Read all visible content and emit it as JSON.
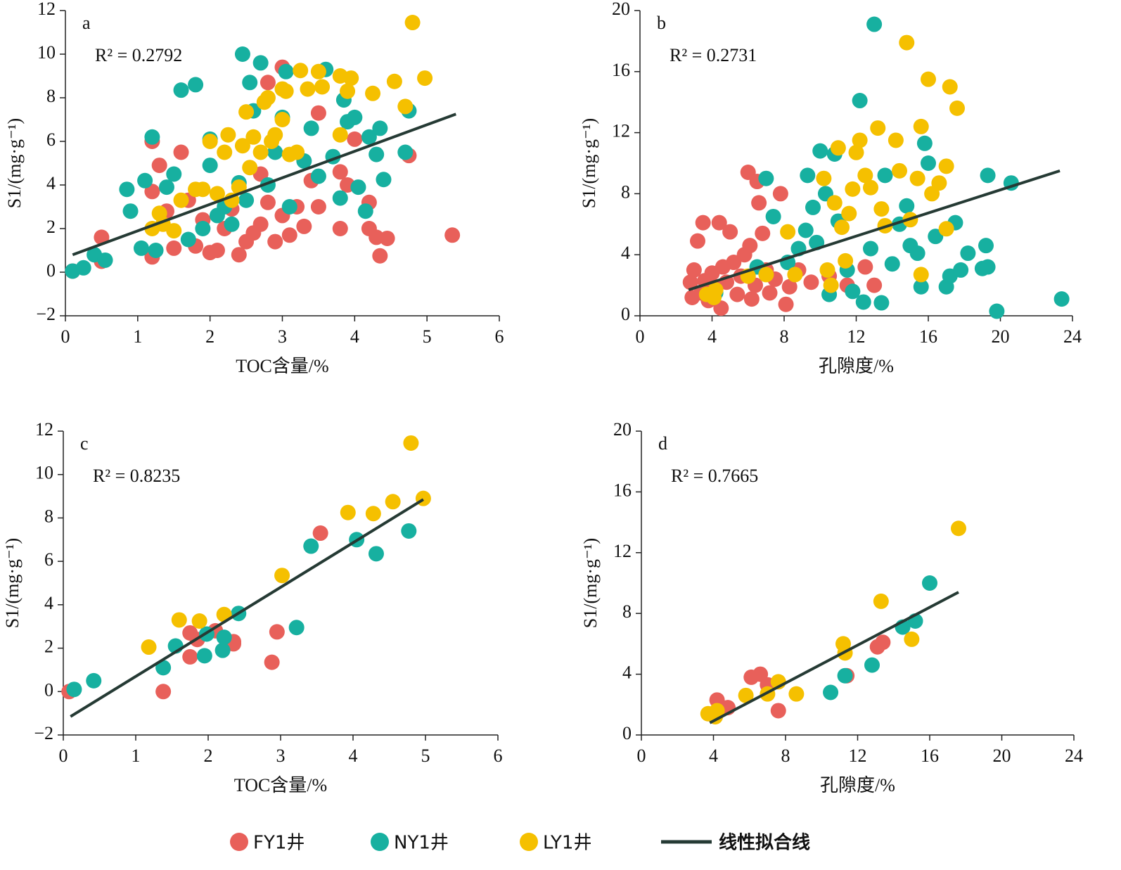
{
  "legend": [
    {
      "name": "FY1井",
      "color": "#e8605a"
    },
    {
      "name": "NY1井",
      "color": "#17b0a0"
    },
    {
      "name": "LY1井",
      "color": "#f5c000"
    },
    {
      "name": "线性拟合线",
      "color": "#253a34"
    }
  ],
  "chart_data": [
    {
      "type": "scatter",
      "title": "a",
      "annotation": "R² = 0.2792",
      "xlabel": "TOC含量/%",
      "ylabel": "S1/(mg·g⁻¹)",
      "xlim": [
        0,
        6
      ],
      "xticks": [
        0,
        1,
        2,
        3,
        4,
        5,
        6
      ],
      "ylim": [
        -2,
        12
      ],
      "yticks": [
        {
          "value": -2,
          "label": "−2"
        },
        0,
        2,
        4,
        6,
        8,
        10,
        12
      ],
      "series": [
        {
          "x": [
            0.1,
            0.5,
            0.5,
            1.2,
            1.2,
            1.2,
            1.3,
            1.4,
            1.5,
            1.6,
            1.7,
            1.8,
            1.9,
            2.0,
            2.1,
            2.2,
            2.3,
            2.4,
            2.5,
            2.6,
            2.7,
            2.7,
            2.8,
            2.8,
            2.9,
            3.0,
            3.0,
            3.1,
            3.2,
            3.3,
            3.4,
            3.5,
            3.5,
            3.8,
            3.8,
            3.9,
            4.0,
            4.2,
            4.2,
            4.3,
            4.35,
            4.45,
            4.75,
            5.35
          ],
          "values": [
            0.05,
            1.6,
            0.5,
            3.7,
            0.7,
            6.0,
            4.9,
            2.8,
            1.1,
            5.5,
            3.3,
            1.2,
            2.4,
            0.9,
            1.0,
            2.0,
            2.9,
            0.8,
            1.4,
            1.8,
            2.2,
            4.5,
            8.7,
            3.2,
            1.4,
            9.4,
            2.6,
            1.7,
            3.0,
            2.1,
            4.2,
            3.0,
            7.3,
            4.6,
            2.0,
            4.0,
            6.1,
            3.2,
            2.0,
            1.6,
            0.75,
            1.55,
            5.35,
            1.7
          ]
        },
        {
          "x": [
            0.1,
            0.25,
            0.4,
            0.55,
            0.85,
            0.9,
            1.05,
            1.1,
            1.2,
            1.25,
            1.4,
            1.5,
            1.6,
            1.7,
            1.8,
            1.9,
            2.0,
            2.0,
            2.1,
            2.2,
            2.3,
            2.4,
            2.45,
            2.5,
            2.55,
            2.6,
            2.7,
            2.8,
            2.9,
            3.0,
            3.05,
            3.1,
            3.3,
            3.4,
            3.5,
            3.6,
            3.7,
            3.8,
            3.85,
            3.9,
            4.0,
            4.05,
            4.15,
            4.2,
            4.3,
            4.35,
            4.4,
            4.7,
            4.75
          ],
          "values": [
            0.05,
            0.2,
            0.8,
            0.55,
            3.8,
            2.8,
            1.1,
            4.2,
            6.2,
            1.0,
            3.9,
            4.5,
            8.35,
            1.5,
            8.6,
            2.0,
            6.1,
            4.9,
            2.6,
            3.0,
            2.2,
            4.1,
            10.0,
            3.3,
            8.7,
            7.4,
            9.6,
            4.0,
            5.5,
            7.1,
            9.2,
            3.0,
            5.1,
            6.6,
            4.4,
            9.3,
            5.3,
            3.4,
            7.9,
            6.9,
            7.1,
            3.9,
            2.8,
            6.2,
            5.4,
            6.6,
            4.25,
            5.5,
            7.4
          ]
        },
        {
          "x": [
            1.2,
            1.3,
            1.35,
            1.5,
            1.6,
            1.8,
            1.9,
            2.0,
            2.1,
            2.2,
            2.25,
            2.3,
            2.4,
            2.45,
            2.5,
            2.55,
            2.6,
            2.7,
            2.75,
            2.8,
            2.85,
            2.9,
            3.0,
            3.0,
            3.05,
            3.1,
            3.2,
            3.25,
            3.35,
            3.5,
            3.55,
            3.8,
            3.8,
            3.9,
            3.95,
            4.25,
            4.55,
            4.7,
            4.8,
            4.97
          ],
          "values": [
            2.0,
            2.7,
            2.2,
            1.9,
            3.3,
            3.8,
            3.8,
            6.0,
            3.6,
            5.5,
            6.3,
            3.3,
            3.9,
            5.8,
            7.35,
            4.8,
            6.2,
            5.5,
            7.8,
            8.0,
            6.0,
            6.3,
            8.4,
            7.0,
            8.3,
            5.4,
            5.5,
            9.25,
            8.4,
            9.2,
            8.5,
            9.0,
            6.3,
            8.3,
            8.9,
            8.2,
            8.75,
            7.6,
            11.45,
            8.9
          ]
        }
      ],
      "fit": {
        "x": [
          0.1,
          5.4
        ],
        "y": [
          0.8,
          7.25
        ]
      }
    },
    {
      "type": "scatter",
      "title": "b",
      "annotation": "R² = 0.2731",
      "xlabel": "孔隙度/%",
      "ylabel": "S1/(mg·g⁻¹)",
      "xlim": [
        0,
        24
      ],
      "xticks": [
        0,
        4,
        8,
        12,
        16,
        20,
        24
      ],
      "ylim": [
        0,
        20
      ],
      "yticks": [
        0,
        4,
        8,
        12,
        16,
        20
      ],
      "series": [
        {
          "x": [
            2.8,
            2.9,
            3.0,
            3.2,
            3.4,
            3.5,
            3.6,
            3.8,
            4.0,
            4.2,
            4.4,
            4.5,
            4.6,
            4.8,
            5.0,
            5.2,
            5.4,
            5.6,
            5.8,
            6.0,
            6.1,
            6.2,
            6.4,
            6.5,
            6.6,
            6.8,
            7.0,
            7.2,
            7.5,
            7.8,
            8.1,
            8.3,
            8.8,
            9.5,
            10.5,
            11.5,
            12.5,
            13.0
          ],
          "values": [
            2.2,
            1.2,
            3.0,
            4.9,
            1.5,
            6.1,
            2.3,
            1.0,
            2.8,
            1.8,
            6.1,
            0.5,
            3.2,
            2.2,
            5.5,
            3.5,
            1.4,
            2.6,
            4.0,
            9.4,
            4.6,
            1.1,
            2.0,
            8.8,
            7.4,
            5.4,
            3.0,
            1.5,
            2.4,
            8.0,
            0.75,
            1.9,
            3.0,
            2.2,
            2.6,
            2.0,
            3.2,
            2.0
          ]
        },
        {
          "x": [
            4.2,
            6.5,
            7.0,
            7.4,
            8.2,
            8.8,
            9.2,
            9.3,
            9.6,
            9.8,
            10.0,
            10.3,
            10.5,
            10.8,
            11.0,
            11.5,
            11.8,
            12.2,
            12.4,
            12.8,
            13.0,
            13.4,
            13.6,
            14.0,
            14.4,
            14.8,
            15.0,
            15.4,
            15.6,
            15.8,
            16.0,
            16.4,
            17.0,
            17.2,
            17.5,
            17.8,
            18.2,
            19.0,
            19.3,
            19.2,
            19.3,
            19.8,
            20.6,
            23.4
          ],
          "values": [
            1.5,
            3.2,
            9.0,
            6.5,
            3.5,
            4.4,
            5.6,
            9.2,
            7.1,
            4.8,
            10.8,
            8.0,
            1.4,
            10.6,
            6.2,
            3.0,
            1.6,
            14.1,
            0.9,
            4.4,
            19.1,
            0.85,
            9.2,
            3.4,
            6.0,
            7.2,
            4.6,
            4.1,
            1.9,
            11.3,
            10.0,
            5.2,
            1.9,
            2.6,
            6.1,
            3.0,
            4.1,
            3.1,
            3.2,
            4.6,
            9.2,
            0.3,
            8.7,
            1.1
          ]
        },
        {
          "x": [
            3.7,
            4.1,
            4.2,
            6.0,
            7.0,
            8.2,
            8.6,
            10.2,
            10.4,
            10.6,
            10.8,
            11.0,
            11.2,
            11.4,
            11.6,
            11.8,
            12.0,
            12.2,
            12.5,
            12.8,
            13.2,
            13.4,
            13.6,
            14.2,
            14.4,
            14.8,
            15.0,
            15.4,
            15.6,
            15.6,
            16.0,
            16.2,
            16.6,
            17.0,
            17.2,
            17.6,
            17.0
          ],
          "values": [
            1.4,
            1.2,
            1.7,
            2.6,
            2.7,
            5.5,
            2.7,
            9.0,
            3.0,
            2.0,
            7.4,
            11.0,
            5.8,
            3.6,
            6.7,
            8.3,
            10.7,
            11.5,
            9.2,
            8.4,
            12.3,
            7.0,
            5.9,
            11.5,
            9.5,
            17.9,
            6.3,
            9.0,
            2.7,
            12.4,
            15.5,
            8.0,
            8.7,
            9.8,
            15.0,
            13.6,
            5.7
          ]
        }
      ],
      "fit": {
        "x": [
          2.7,
          23.3
        ],
        "y": [
          1.7,
          9.5
        ]
      }
    },
    {
      "type": "scatter",
      "title": "c",
      "annotation": "R² = 0.8235",
      "xlabel": "TOC含量/%",
      "ylabel": "S1/(mg·g⁻¹)",
      "xlim": [
        0,
        6
      ],
      "xticks": [
        0,
        1,
        2,
        3,
        4,
        5,
        6
      ],
      "ylim": [
        -2,
        12
      ],
      "yticks": [
        {
          "value": -2,
          "label": "−2"
        },
        0,
        2,
        4,
        6,
        8,
        10,
        12
      ],
      "series": [
        {
          "x": [
            0.08,
            1.38,
            1.75,
            1.75,
            1.85,
            2.1,
            2.35,
            2.35,
            2.88,
            2.95,
            3.55
          ],
          "values": [
            0.0,
            0.0,
            2.7,
            1.6,
            2.4,
            2.8,
            2.3,
            2.2,
            1.35,
            2.75,
            7.3
          ]
        },
        {
          "x": [
            0.15,
            0.42,
            1.38,
            1.55,
            1.95,
            1.98,
            2.2,
            2.22,
            2.42,
            3.22,
            3.42,
            4.05,
            4.32,
            4.77
          ],
          "values": [
            0.1,
            0.5,
            1.1,
            2.1,
            1.65,
            2.65,
            1.9,
            2.5,
            3.6,
            2.95,
            6.7,
            7.0,
            6.35,
            7.4
          ]
        },
        {
          "x": [
            1.18,
            1.6,
            1.88,
            2.22,
            3.02,
            3.93,
            4.28,
            4.55,
            4.8,
            4.97
          ],
          "values": [
            2.05,
            3.3,
            3.25,
            3.55,
            5.35,
            8.25,
            8.2,
            8.75,
            11.45,
            8.9
          ]
        }
      ],
      "fit": {
        "x": [
          0.1,
          4.97
        ],
        "y": [
          -1.15,
          8.85
        ]
      }
    },
    {
      "type": "scatter",
      "title": "d",
      "annotation": "R² = 0.7665",
      "xlabel": "孔隙度/%",
      "ylabel": "S1/(mg·g⁻¹)",
      "xlim": [
        0,
        24
      ],
      "xticks": [
        0,
        4,
        8,
        12,
        16,
        20,
        24
      ],
      "ylim": [
        0,
        20
      ],
      "yticks": [
        0,
        4,
        8,
        12,
        16,
        20
      ],
      "series": [
        {
          "x": [
            4.2,
            4.8,
            6.1,
            6.6,
            7.0,
            7.6,
            11.4,
            13.1,
            13.4
          ],
          "values": [
            2.3,
            1.8,
            3.8,
            4.0,
            3.3,
            1.6,
            3.9,
            5.8,
            6.1
          ]
        },
        {
          "x": [
            10.5,
            11.3,
            12.8,
            14.5,
            15.2,
            16.0
          ],
          "values": [
            2.8,
            3.9,
            4.6,
            7.1,
            7.5,
            10.0
          ]
        },
        {
          "x": [
            3.7,
            4.1,
            4.2,
            5.8,
            7.0,
            7.6,
            8.6,
            11.2,
            11.3,
            13.3,
            15.0,
            17.6
          ],
          "values": [
            1.4,
            1.2,
            1.6,
            2.6,
            2.7,
            3.5,
            2.7,
            6.0,
            5.4,
            8.8,
            6.3,
            13.6
          ]
        }
      ],
      "fit": {
        "x": [
          3.8,
          17.6
        ],
        "y": [
          0.8,
          9.4
        ]
      }
    }
  ]
}
